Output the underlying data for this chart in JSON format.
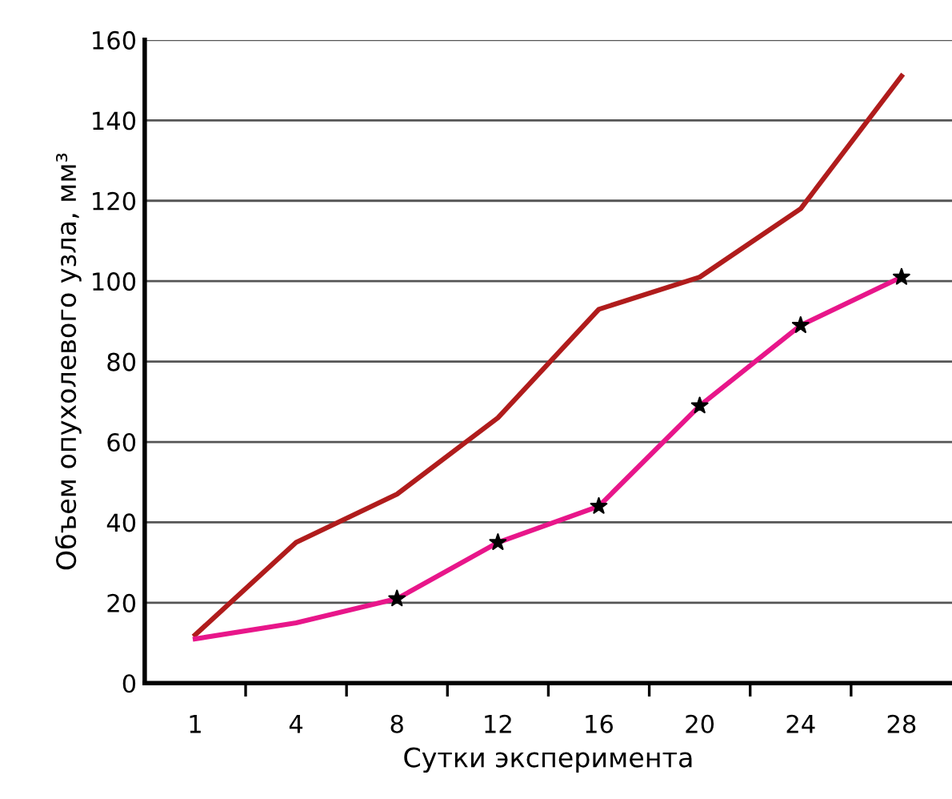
{
  "chart_data": {
    "type": "line",
    "xlabel": "Сутки эксперимента",
    "ylabel": "Объем опухолевого узла, мм³",
    "categories": [
      "1",
      "4",
      "8",
      "12",
      "16",
      "20",
      "24",
      "28"
    ],
    "series": [
      {
        "color": "#b01c1c",
        "values": [
          12,
          35,
          47,
          66,
          93,
          101,
          118,
          151
        ]
      },
      {
        "color": "#e8168a",
        "values": [
          11,
          15,
          21,
          35,
          44,
          69,
          89,
          101
        ]
      },
      {
        "type": "scatter",
        "color": "#000000",
        "marker": "star",
        "x": [
          "8",
          "12",
          "16",
          "20",
          "24",
          "28"
        ],
        "values": [
          21,
          35,
          44,
          69,
          89,
          101
        ]
      }
    ],
    "ylim": [
      0,
      160
    ],
    "yticks": [
      0,
      20,
      40,
      60,
      80,
      100,
      120,
      140,
      160
    ],
    "grid": "y",
    "legend": false,
    "marker": "none",
    "line_style": "solid"
  }
}
